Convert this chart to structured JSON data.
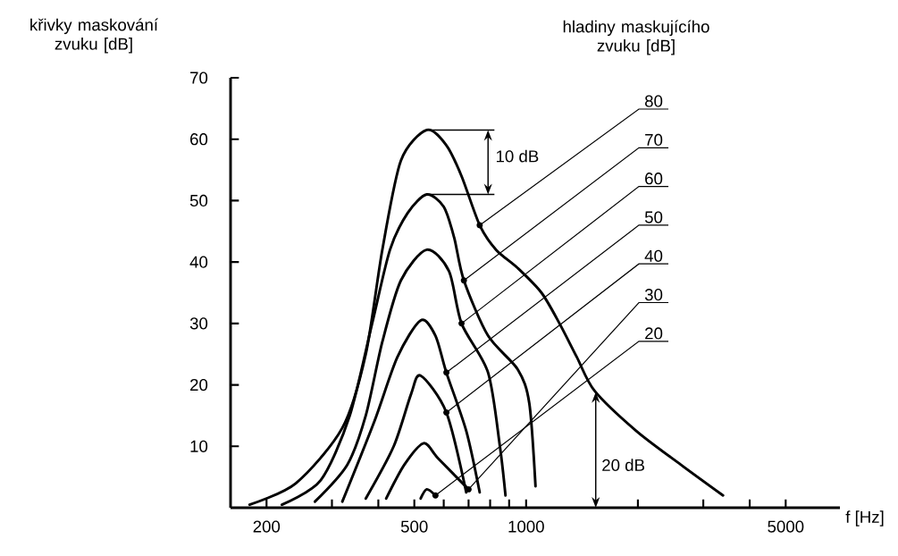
{
  "chart_data": {
    "type": "line",
    "ylabel": "křivky maskování zvuku [dB]",
    "legend_title": "hladiny maskujícího zvuku [dB]",
    "xlabel": "f [Hz]",
    "log": "x",
    "xlim": [
      160,
      7000
    ],
    "ylim": [
      0,
      70
    ],
    "xticks": [
      200,
      {
        "value": 300,
        "label": null
      },
      {
        "value": 400,
        "label": null
      },
      500,
      {
        "value": 600,
        "label": null
      },
      {
        "value": 700,
        "label": null
      },
      {
        "value": 800,
        "label": null
      },
      {
        "value": 900,
        "label": null
      },
      1000,
      {
        "value": 2000,
        "label": null
      },
      {
        "value": 3000,
        "label": null
      },
      {
        "value": 4000,
        "label": null
      },
      5000
    ],
    "yticks": [
      10,
      20,
      30,
      40,
      50,
      60,
      70
    ],
    "series": [
      {
        "name": "80",
        "color": "#000000",
        "x": [
          180,
          240,
          320,
          370,
          410,
          460,
          540,
          610,
          670,
          750,
          830,
          950,
          1100,
          1230,
          1370,
          1530,
          1980,
          2610,
          3390
        ],
        "values": [
          0.5,
          4,
          13,
          25,
          42,
          56.5,
          61.5,
          59,
          54,
          46,
          42,
          39,
          35,
          30,
          24.5,
          19,
          12.5,
          7,
          2
        ]
      },
      {
        "name": "70",
        "color": "#000000",
        "x": [
          220,
          280,
          335,
          385,
          430,
          480,
          540,
          600,
          640,
          680,
          790,
          950,
          1020,
          1060
        ],
        "values": [
          0.5,
          4.5,
          15,
          30,
          42,
          48,
          51,
          49,
          44,
          37,
          28,
          22.5,
          17,
          3.5
        ]
      },
      {
        "name": "60",
        "color": "#000000",
        "x": [
          270,
          330,
          370,
          410,
          460,
          540,
          620,
          670,
          790,
          850,
          880
        ],
        "values": [
          1,
          7,
          15,
          27,
          37,
          42,
          38.5,
          30,
          22,
          10,
          2
        ]
      },
      {
        "name": "50",
        "color": "#000000",
        "x": [
          320,
          390,
          450,
          520,
          570,
          610,
          690,
          750
        ],
        "values": [
          1,
          14,
          24.5,
          30.5,
          28,
          22,
          12.5,
          2.5
        ]
      },
      {
        "name": "40",
        "color": "#000000",
        "x": [
          370,
          440,
          490,
          520,
          610,
          690
        ],
        "values": [
          1.5,
          10,
          18.5,
          21.5,
          15.5,
          2.5
        ]
      },
      {
        "name": "30",
        "color": "#000000",
        "x": [
          420,
          470,
          530,
          580,
          700
        ],
        "values": [
          1.5,
          7,
          10.5,
          8,
          3
        ]
      },
      {
        "name": "20",
        "color": "#000000",
        "x": [
          520,
          540,
          570
        ],
        "values": [
          1.5,
          3,
          2
        ]
      }
    ],
    "annotations": [
      {
        "text": "10 dB",
        "x": 540,
        "y": 61.5
      },
      "20 dB"
    ]
  }
}
